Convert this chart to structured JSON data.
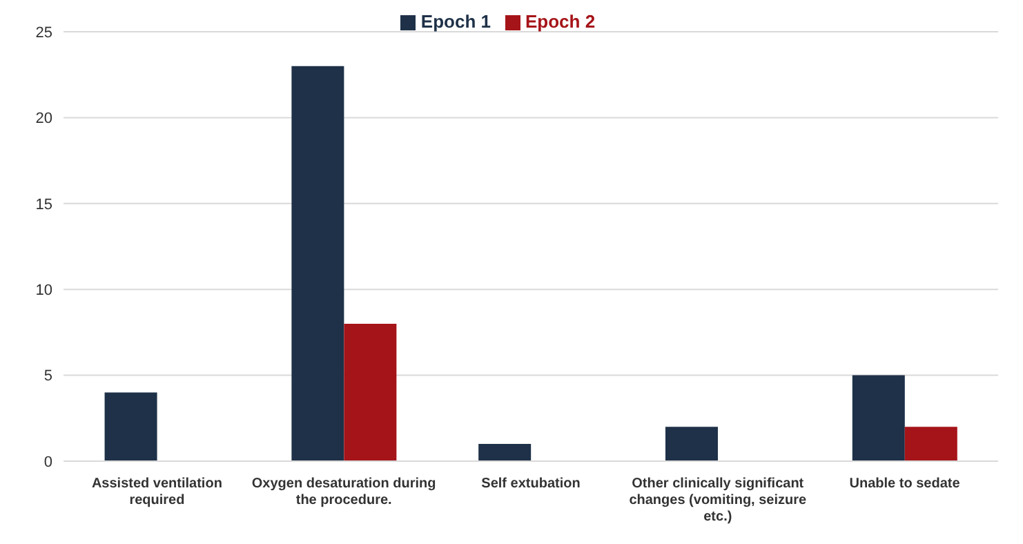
{
  "chart_data": {
    "type": "bar",
    "categories": [
      "Assisted ventilation required",
      "Oxygen desaturation during the procedure.",
      "Self extubation",
      "Other clinically significant changes (vomiting, seizure etc.)",
      "Unable to sedate"
    ],
    "series": [
      {
        "name": "Epoch 1",
        "color": "#1e3148",
        "values": [
          4,
          23,
          1,
          2,
          5
        ]
      },
      {
        "name": "Epoch 2",
        "color": "#a51419",
        "values": [
          0,
          8,
          0,
          0,
          2
        ]
      }
    ],
    "ylim": [
      0,
      25
    ],
    "yticks": [
      0,
      5,
      10,
      15,
      20,
      25
    ],
    "grid": "y",
    "legend": "top"
  }
}
